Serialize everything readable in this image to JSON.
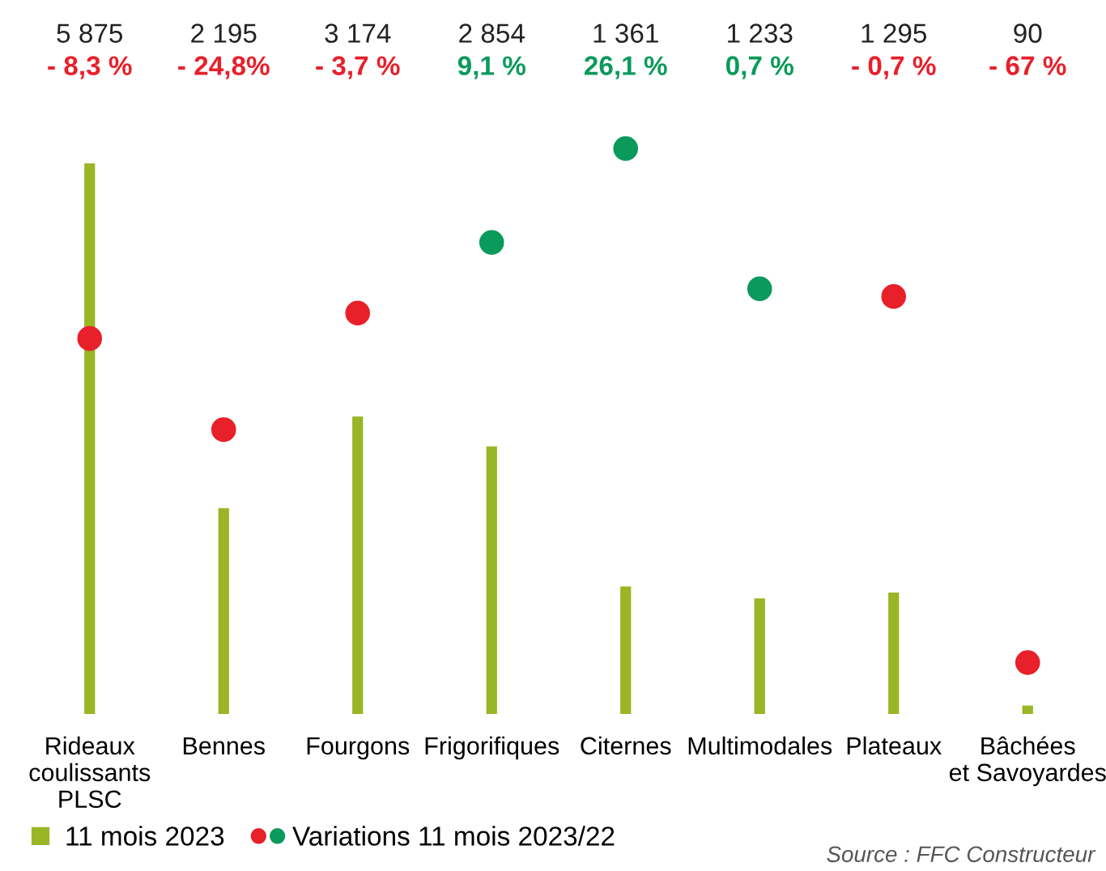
{
  "chart_data": {
    "type": "bar",
    "categories": [
      "Rideaux\ncoulissants\nPLSC",
      "Bennes",
      "Fourgons",
      "Frigorifiques",
      "Citernes",
      "Multimodales",
      "Plateaux",
      "Bâchées\net Savoyardes"
    ],
    "series": [
      {
        "name": "11 mois 2023",
        "color": "#9ab526",
        "values": [
          5875,
          2195,
          3174,
          2854,
          1361,
          1233,
          1295,
          90
        ],
        "value_labels": [
          "5 875",
          "2 195",
          "3 174",
          "2 854",
          "1 361",
          "1 233",
          "1 295",
          "90"
        ]
      },
      {
        "name": "Variations 11 mois 2023/22",
        "type": "scatter",
        "axis": "y2",
        "colors": [
          "#e8202a",
          "#e8202a",
          "#e8202a",
          "#0c9a5c",
          "#0c9a5c",
          "#0c9a5c",
          "#e8202a",
          "#e8202a"
        ],
        "values": [
          -8.3,
          -24.8,
          -3.7,
          9.1,
          26.1,
          0.7,
          -0.7,
          -67
        ],
        "value_labels": [
          "- 8,3 %",
          "- 24,8%",
          "- 3,7 %",
          "9,1 %",
          "26,1 %",
          "0,7 %",
          "- 0,7 %",
          "- 67 %"
        ]
      }
    ],
    "tick_labels": "x",
    "grid": false,
    "legend": "bottom",
    "marker": "circle",
    "annotations": [
      "Source : FFC Constructeur"
    ]
  }
}
